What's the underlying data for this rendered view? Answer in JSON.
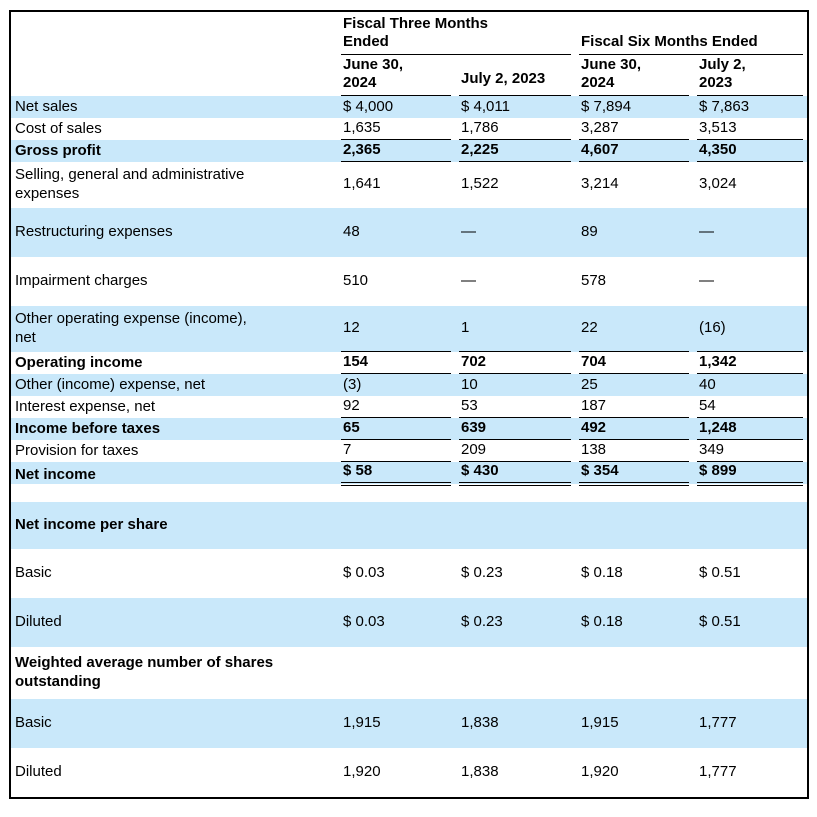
{
  "document": {
    "type": "financial-income-statement"
  },
  "colors": {
    "row_shade": "#c9e8fa",
    "border": "#000000",
    "text": "#000000",
    "background": "#ffffff"
  },
  "table": {
    "group_headers": [
      {
        "label": "Fiscal Three Months\nEnded"
      },
      {
        "label": "Fiscal Six Months Ended"
      }
    ],
    "column_headers": [
      "June 30,\n2024",
      "July 2, 2023",
      "June 30,\n2024",
      "July 2,\n2023"
    ],
    "rows": [
      {
        "label": "Net sales",
        "values": [
          "$ 4,000",
          "$ 4,011",
          "$ 7,894",
          "$ 7,863"
        ],
        "bold": false,
        "shaded": true,
        "underline": "none",
        "size": "normal"
      },
      {
        "label": "Cost of sales",
        "values": [
          "1,635",
          "1,786",
          "3,287",
          "3,513"
        ],
        "bold": false,
        "shaded": false,
        "underline": "single",
        "size": "normal"
      },
      {
        "label": "Gross profit",
        "values": [
          "2,365",
          "2,225",
          "4,607",
          "4,350"
        ],
        "bold": true,
        "shaded": true,
        "underline": "single",
        "size": "normal"
      },
      {
        "label": "Selling, general and administrative\nexpenses",
        "values": [
          "1,641",
          "1,522",
          "3,214",
          "3,024"
        ],
        "bold": false,
        "shaded": false,
        "underline": "none",
        "size": "twoline"
      },
      {
        "label": "Restructuring expenses",
        "values": [
          "48",
          "—",
          "89",
          "—"
        ],
        "bold": false,
        "shaded": true,
        "underline": "none",
        "size": "tall"
      },
      {
        "label": "Impairment charges",
        "values": [
          "510",
          "—",
          "578",
          "—"
        ],
        "bold": false,
        "shaded": false,
        "underline": "none",
        "size": "tall"
      },
      {
        "label": "Other operating expense (income),\nnet",
        "values": [
          "12",
          "1",
          "22",
          "(16)"
        ],
        "bold": false,
        "shaded": true,
        "underline": "single",
        "size": "twoline"
      },
      {
        "label": "Operating income",
        "values": [
          "154",
          "702",
          "704",
          "1,342"
        ],
        "bold": true,
        "shaded": false,
        "underline": "single",
        "size": "normal"
      },
      {
        "label": "Other (income) expense, net",
        "values": [
          "(3)",
          "10",
          "25",
          "40"
        ],
        "bold": false,
        "shaded": true,
        "underline": "none",
        "size": "normal"
      },
      {
        "label": "Interest expense, net",
        "values": [
          "92",
          "53",
          "187",
          "54"
        ],
        "bold": false,
        "shaded": false,
        "underline": "single",
        "size": "normal"
      },
      {
        "label": "Income before taxes",
        "values": [
          "65",
          "639",
          "492",
          "1,248"
        ],
        "bold": true,
        "shaded": true,
        "underline": "single",
        "size": "normal"
      },
      {
        "label": "Provision for taxes",
        "values": [
          "7",
          "209",
          "138",
          "349"
        ],
        "bold": false,
        "shaded": false,
        "underline": "single",
        "size": "normal"
      },
      {
        "label": "Net income",
        "values": [
          "$ 58",
          "$ 430",
          "$ 354",
          "$ 899"
        ],
        "bold": true,
        "shaded": true,
        "underline": "double",
        "size": "normal"
      },
      {
        "label": "",
        "values": [
          "",
          "",
          "",
          ""
        ],
        "bold": false,
        "shaded": false,
        "underline": "none",
        "size": "spacer"
      },
      {
        "label": "Net income per share",
        "values": [
          "",
          "",
          "",
          ""
        ],
        "bold": true,
        "shaded": true,
        "underline": "none",
        "size": "section"
      },
      {
        "label": "Basic",
        "values": [
          "$ 0.03",
          "$ 0.23",
          "$ 0.18",
          "$ 0.51"
        ],
        "bold": false,
        "shaded": false,
        "underline": "none",
        "size": "tall"
      },
      {
        "label": "Diluted",
        "values": [
          "$ 0.03",
          "$ 0.23",
          "$ 0.18",
          "$ 0.51"
        ],
        "bold": false,
        "shaded": true,
        "underline": "none",
        "size": "tall"
      },
      {
        "label": "Weighted average number of shares\noutstanding",
        "values": [
          "",
          "",
          "",
          ""
        ],
        "bold": true,
        "shaded": false,
        "underline": "none",
        "size": "section2"
      },
      {
        "label": "Basic",
        "values": [
          "1,915",
          "1,838",
          "1,915",
          "1,777"
        ],
        "bold": false,
        "shaded": true,
        "underline": "none",
        "size": "tall"
      },
      {
        "label": "Diluted",
        "values": [
          "1,920",
          "1,838",
          "1,920",
          "1,777"
        ],
        "bold": false,
        "shaded": false,
        "underline": "none",
        "size": "tall"
      }
    ]
  }
}
